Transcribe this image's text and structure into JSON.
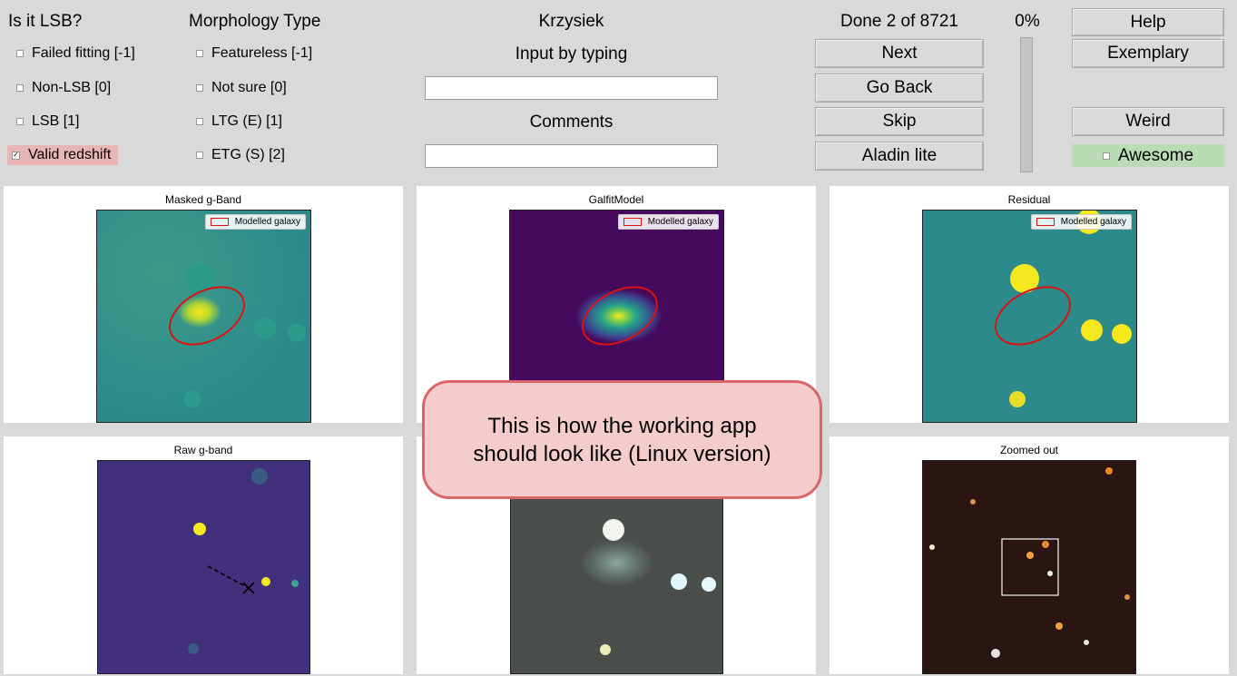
{
  "lsb_group": {
    "title": "Is it LSB?",
    "options": [
      {
        "label": "Failed fitting [-1]",
        "checked": false
      },
      {
        "label": "Non-LSB [0]",
        "checked": false
      },
      {
        "label": "LSB [1]",
        "checked": false
      },
      {
        "label": "Valid redshift",
        "checked": true
      }
    ]
  },
  "morphology_group": {
    "title": "Morphology Type",
    "options": [
      {
        "label": "Featureless [-1]",
        "checked": false
      },
      {
        "label": "Not sure [0]",
        "checked": false
      },
      {
        "label": "LTG (E) [1]",
        "checked": false
      },
      {
        "label": "ETG (S) [2]",
        "checked": false
      }
    ]
  },
  "user": {
    "name": "Krzysiek"
  },
  "inputs": {
    "typing_label": "Input by typing",
    "typing_value": "",
    "comments_label": "Comments",
    "comments_value": ""
  },
  "status": {
    "done_text": "Done 2 of 8721",
    "progress_text": "0%",
    "progress_value": 0
  },
  "nav_buttons": {
    "next": "Next",
    "go_back": "Go Back",
    "skip": "Skip",
    "aladin": "Aladin lite"
  },
  "side_buttons": {
    "help": "Help",
    "exemplary": "Exemplary",
    "weird": "Weird",
    "awesome": {
      "label": "Awesome",
      "checked": false
    }
  },
  "panels": {
    "masked": {
      "title": "Masked g-Band",
      "legend": "Modelled galaxy"
    },
    "model": {
      "title": "GalfitModel",
      "legend": "Modelled galaxy"
    },
    "residual": {
      "title": "Residual",
      "legend": "Modelled galaxy"
    },
    "raw": {
      "title": "Raw g-band"
    },
    "zoomed": {
      "title": "Zoomed out"
    }
  },
  "callout": {
    "text": "This is how the working app should look like (Linux version)"
  },
  "colors": {
    "checked_bg": "#e8b5b5",
    "awesome_bg": "#b9dcb4",
    "callout_bg": "#f4cccc",
    "callout_border": "#d9666b",
    "ellipse": "#d11"
  }
}
